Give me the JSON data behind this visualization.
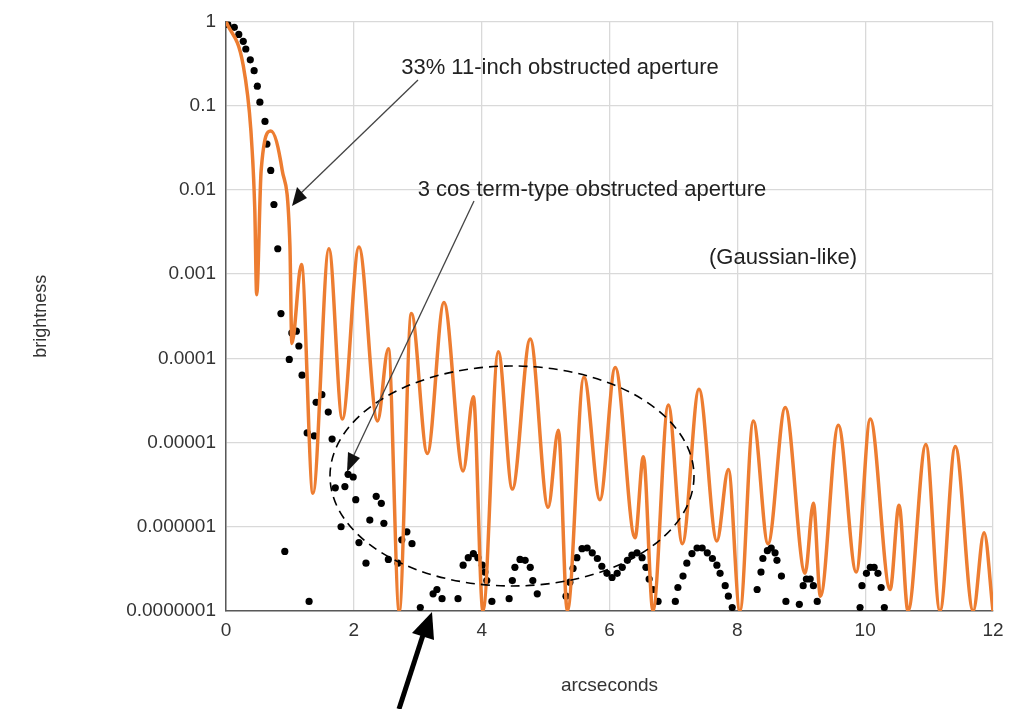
{
  "chart_data": {
    "type": "line",
    "xlabel": "arcseconds",
    "ylabel": "brightness",
    "log": "y",
    "grid": true,
    "legend": false,
    "xlim": [
      0,
      12
    ],
    "xticks": [
      0,
      2,
      4,
      6,
      8,
      10,
      12
    ],
    "ylim": [
      1e-07,
      1
    ],
    "yticks": [
      {
        "value": 1e-07,
        "label": "0.0000001"
      },
      {
        "value": 1e-06,
        "label": "0.000001"
      },
      {
        "value": 1e-05,
        "label": "0.00001"
      },
      {
        "value": 0.0001,
        "label": "0.0001"
      },
      {
        "value": 0.001,
        "label": "0.001"
      },
      {
        "value": 0.01,
        "label": "0.01"
      },
      {
        "value": 0.1,
        "label": "0.1"
      },
      {
        "value": 1,
        "label": "1"
      }
    ],
    "annotations": [
      "33% 11-inch obstructed aperture",
      "3 cos term-type obstructed aperture",
      "(Gaussian-like)"
    ],
    "series": [
      {
        "type": "line",
        "color": "#ed7d31",
        "marker": "none",
        "line_style": "solid",
        "x": [
          0,
          0.27,
          0.39,
          0.45,
          0.48,
          0.55,
          0.7,
          0.88,
          1.0,
          1.03,
          1.18,
          1.36,
          1.61,
          1.82,
          2.08,
          2.37,
          2.54,
          2.71,
          2.9,
          3.15,
          3.41,
          3.71,
          3.87,
          4.02,
          4.26,
          4.48,
          4.76,
          5.04,
          5.2,
          5.34,
          5.6,
          5.85,
          6.09,
          6.4,
          6.53,
          6.68,
          6.92,
          7.14,
          7.4,
          7.68,
          7.86,
          8.04,
          8.25,
          8.48,
          8.75,
          9.06,
          9.19,
          9.3,
          9.58,
          9.86,
          10.08,
          10.39,
          10.53,
          10.67,
          10.95,
          11.17,
          11.41,
          11.69,
          11.86,
          12.0
        ],
        "values": [
          1,
          0.3,
          0.05,
          0.006,
          0.00057,
          0.017,
          0.05,
          0.017,
          0.0022,
          0.00015,
          0.0013,
          2.5e-06,
          0.002,
          1.9e-05,
          0.0021,
          1.8e-05,
          0.00013,
          1e-07,
          0.00034,
          7.4e-06,
          0.00046,
          4.6e-06,
          3.5e-05,
          1e-07,
          0.00012,
          2.8e-06,
          0.00017,
          1.7e-06,
          1.4e-05,
          1e-07,
          6e-05,
          2.1e-06,
          7.8e-05,
          7.4e-07,
          6.8e-06,
          1e-07,
          2.8e-05,
          6.3e-07,
          4.3e-05,
          6.8e-07,
          4.8e-06,
          1e-07,
          1.8e-05,
          6.3e-07,
          2.6e-05,
          2.8e-07,
          1.9e-06,
          1.5e-07,
          1.6e-05,
          2.9e-07,
          1.9e-05,
          1.8e-07,
          1.8e-06,
          1e-07,
          9.5e-06,
          1e-07,
          9e-06,
          1e-07,
          8.5e-07,
          1e-07
        ]
      },
      {
        "type": "scatter",
        "color": "#000000",
        "marker": "circle",
        "x": [
          0.03,
          0.13,
          0.2,
          0.27,
          0.31,
          0.38,
          0.44,
          0.49,
          0.53,
          0.61,
          0.64,
          0.7,
          0.75,
          0.81,
          0.86,
          0.92,
          0.99,
          1.03,
          1.1,
          1.14,
          1.19,
          1.27,
          1.3,
          1.38,
          1.41,
          1.5,
          1.6,
          1.66,
          1.71,
          1.8,
          1.86,
          1.91,
          1.99,
          2.03,
          2.08,
          2.19,
          2.25,
          2.35,
          2.43,
          2.47,
          2.54,
          2.69,
          2.75,
          2.83,
          2.91,
          3.04,
          3.24,
          3.3,
          3.38,
          3.63,
          3.71,
          3.79,
          3.87,
          3.94,
          4.01,
          4.05,
          4.08,
          4.16,
          4.43,
          4.48,
          4.52,
          4.6,
          4.68,
          4.76,
          4.8,
          4.87,
          5.32,
          5.38,
          5.43,
          5.49,
          5.57,
          5.65,
          5.73,
          5.81,
          5.88,
          5.96,
          6.04,
          6.12,
          6.2,
          6.28,
          6.35,
          6.43,
          6.51,
          6.57,
          6.62,
          6.68,
          6.76,
          7.03,
          7.07,
          7.15,
          7.21,
          7.29,
          7.37,
          7.45,
          7.53,
          7.61,
          7.68,
          7.73,
          7.81,
          7.86,
          7.92,
          8.31,
          8.37,
          8.4,
          8.47,
          8.53,
          8.59,
          8.62,
          8.69,
          8.76,
          8.97,
          9.03,
          9.08,
          9.14,
          9.19,
          9.25,
          9.92,
          9.95,
          10.02,
          10.08,
          10.14,
          10.2,
          10.25,
          10.3
        ],
        "values": [
          0.92,
          0.85,
          0.7,
          0.58,
          0.47,
          0.35,
          0.26,
          0.17,
          0.11,
          0.065,
          0.035,
          0.017,
          0.0067,
          0.002,
          0.00034,
          5.1e-07,
          9.7e-05,
          0.0002,
          0.00021,
          0.00014,
          6.3e-05,
          1.3e-05,
          1.3e-07,
          1.2e-05,
          3e-05,
          3.7e-05,
          2.3e-05,
          1.1e-05,
          2.9e-06,
          1e-06,
          3e-06,
          4.2e-06,
          3.9e-06,
          2.1e-06,
          6.5e-07,
          3.7e-07,
          1.2e-06,
          2.3e-06,
          1.9e-06,
          1.1e-06,
          4.1e-07,
          3.7e-07,
          7e-07,
          8.7e-07,
          6.3e-07,
          1.1e-07,
          1.6e-07,
          1.8e-07,
          1.4e-07,
          1.4e-07,
          3.5e-07,
          4.3e-07,
          4.8e-07,
          4.3e-07,
          3.5e-07,
          2.9e-07,
          2.3e-07,
          1.3e-07,
          1.4e-07,
          2.3e-07,
          3.3e-07,
          4.1e-07,
          4e-07,
          3.3e-07,
          2.3e-07,
          1.6e-07,
          1.5e-07,
          2.2e-07,
          3.2e-07,
          4.3e-07,
          5.5e-07,
          5.6e-07,
          4.9e-07,
          4.2e-07,
          3.4e-07,
          2.8e-07,
          2.5e-07,
          2.8e-07,
          3.3e-07,
          4e-07,
          4.6e-07,
          4.9e-07,
          4.3e-07,
          3.3e-07,
          2.4e-07,
          1.8e-07,
          1.3e-07,
          1.3e-07,
          1.9e-07,
          2.6e-07,
          3.7e-07,
          4.8e-07,
          5.6e-07,
          5.6e-07,
          4.9e-07,
          4.2e-07,
          3.5e-07,
          2.8e-07,
          2e-07,
          1.5e-07,
          1.1e-07,
          1.8e-07,
          2.9e-07,
          4.2e-07,
          5.2e-07,
          5.6e-07,
          4.9e-07,
          4e-07,
          2.6e-07,
          1.3e-07,
          1.2e-07,
          2e-07,
          2.4e-07,
          2.4e-07,
          2e-07,
          1.3e-07,
          1.1e-07,
          2e-07,
          2.8e-07,
          3.3e-07,
          3.3e-07,
          2.8e-07,
          1.9e-07,
          1.1e-07
        ]
      }
    ]
  }
}
